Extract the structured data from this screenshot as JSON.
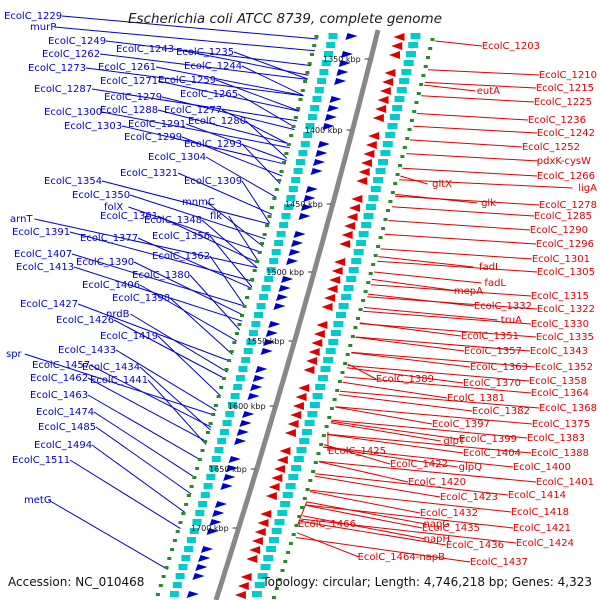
{
  "title": "Escherichia coli ATCC 8739, complete genome",
  "footer": {
    "accession": "Accession: NC_010468",
    "topology": "Topology: circular; Length: 4,746,218 bp; Genes: 4,323"
  },
  "scale_labels": [
    "1350 kbp",
    "1400 kbp",
    "1450 kbp",
    "1500 kbp",
    "1550 kbp",
    "1600 kbp",
    "1650 kbp",
    "1700 kbp"
  ],
  "colors": {
    "reverse_strand": "#0000cc",
    "forward_strand": "#dd0000",
    "backbone": "#888888",
    "gc_skew": "#2a8a2a"
  },
  "left_labels": [
    "EcolC_1229",
    "murP",
    "EcolC_1249",
    "EcolC_1262",
    "EcolC_1243",
    "EcolC_1235",
    "EcolC_1273",
    "EcolC_1261",
    "EcolC_1244",
    "EcolC_1271",
    "EcolC_1259",
    "EcolC_1287",
    "EcolC_1279",
    "EcolC_1265",
    "EcolC_1288",
    "EcolC_1277",
    "EcolC_1300",
    "EcolC_1291",
    "EcolC_1280",
    "EcolC_1303",
    "EcolC_1299",
    "EcolC_1293",
    "EcolC_1304",
    "EcolC_1321",
    "EcolC_1309",
    "EcolC_1354",
    "EcolC_1350",
    "mnmC",
    "folX",
    "flk",
    "EcolC_1361",
    "EcolC_1348",
    "arnT",
    "EcolC_1391",
    "EcolC_1377",
    "EcolC_1356",
    "EcolC_1362",
    "EcolC_1407",
    "EcolC_1390",
    "EcolC_1413",
    "EcolC_1380",
    "EcolC_1406",
    "EcolC_1398",
    "EcolC_1427",
    "nrdB",
    "EcolC_1426",
    "EcolC_1419",
    "EcolC_1433",
    "spr",
    "EcolC_1457",
    "EcolC_1434",
    "EcolC_1462",
    "EcolC_1441",
    "EcolC_1463",
    "EcolC_1474",
    "EcolC_1485",
    "EcolC_1494",
    "EcolC_1511",
    "metG"
  ],
  "right_labels": [
    "EcolC_1203",
    "EcolC_1210",
    "EcolC_1215",
    "eutA",
    "EcolC_1225",
    "EcolC_1236",
    "EcolC_1242",
    "EcolC_1252",
    "pdxK-cysW",
    "EcolC_1266",
    "gltX",
    "ligA",
    "glk",
    "EcolC_1278",
    "EcolC_1285",
    "EcolC_1290",
    "EcolC_1296",
    "EcolC_1301",
    "fadI",
    "EcolC_1305",
    "fadL",
    "EcolC_1315",
    "mepA",
    "EcolC_1332",
    "EcolC_1322",
    "truA",
    "EcolC_1330",
    "EcolC_1351",
    "EcolC_1335",
    "EcolC_1357",
    "EcolC_1343",
    "EcolC_1363",
    "EcolC_1352",
    "EcolC_1389",
    "EcolC_1370",
    "EcolC_1358",
    "EcolC_1381",
    "EcolC_1364",
    "EcolC_1382",
    "EcolC_1368",
    "EcolC_1397",
    "EcolC_1375",
    "EcolC_1399",
    "EcolC_1383",
    "glpT",
    "EcolC_1404",
    "EcolC_1388",
    "EcolC_1425",
    "EcolC_1422",
    "glpQ",
    "EcolC_1400",
    "EcolC_1420",
    "EcolC_1401",
    "EcolC_1423",
    "EcolC_1414",
    "EcolC_1432",
    "EcolC_1418",
    "napG",
    "EcolC_1466",
    "EcolC_1435",
    "EcolC_1421",
    "napH",
    "EcolC_1436",
    "EcolC_1424",
    "EcolC_1464-napB",
    "EcolC_1437"
  ]
}
